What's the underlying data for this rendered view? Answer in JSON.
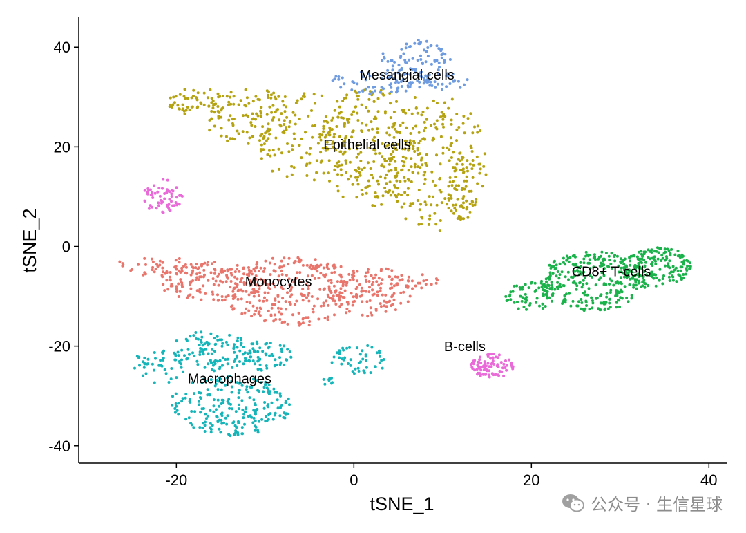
{
  "chart_data": {
    "type": "scatter",
    "title": "",
    "xlabel": "tSNE_1",
    "ylabel": "tSNE_2",
    "xlim": [
      -31,
      42
    ],
    "ylim": [
      -43.5,
      46
    ],
    "xticks": [
      -20,
      0,
      20,
      40
    ],
    "yticks": [
      -40,
      -20,
      0,
      20,
      40
    ],
    "grid": false,
    "legend": "none",
    "series": [
      {
        "name": "Epithelial cells",
        "color": "#B5A312",
        "label_at": [
          1.5,
          19.5
        ],
        "regions": [
          {
            "shape": "ellipse",
            "cx": -17,
            "cy": 29,
            "rx": 4,
            "ry": 3,
            "n": 60
          },
          {
            "shape": "ellipse",
            "cx": -12,
            "cy": 26,
            "rx": 5,
            "ry": 6,
            "n": 90
          },
          {
            "shape": "ellipse",
            "cx": -6,
            "cy": 22,
            "rx": 6,
            "ry": 9,
            "n": 130
          },
          {
            "shape": "ellipse",
            "cx": 2,
            "cy": 20,
            "rx": 6,
            "ry": 12,
            "n": 230
          },
          {
            "shape": "ellipse",
            "cx": 9,
            "cy": 17,
            "rx": 6,
            "ry": 14,
            "n": 220
          },
          {
            "shape": "ellipse",
            "cx": 12,
            "cy": 12,
            "rx": 2,
            "ry": 8,
            "n": 50
          }
        ]
      },
      {
        "name": "Mesangial cells",
        "color": "#6F9CE0",
        "label_at": [
          6,
          33.5
        ],
        "regions": [
          {
            "shape": "ellipse",
            "cx": 7,
            "cy": 38,
            "rx": 4,
            "ry": 3.5,
            "n": 70
          },
          {
            "shape": "ellipse",
            "cx": 3,
            "cy": 33,
            "rx": 6,
            "ry": 2.5,
            "n": 80
          },
          {
            "shape": "ellipse",
            "cx": 10,
            "cy": 33,
            "rx": 3,
            "ry": 2,
            "n": 30
          }
        ]
      },
      {
        "name": "Monocytes",
        "color": "#E8766D",
        "label_at": [
          -8.5,
          -8
        ],
        "regions": [
          {
            "shape": "ellipse",
            "cx": -22,
            "cy": -4,
            "rx": 5,
            "ry": 2,
            "n": 40
          },
          {
            "shape": "ellipse",
            "cx": -16,
            "cy": -7,
            "rx": 6,
            "ry": 4,
            "n": 150
          },
          {
            "shape": "ellipse",
            "cx": -7,
            "cy": -9,
            "rx": 8,
            "ry": 7,
            "n": 280
          },
          {
            "shape": "ellipse",
            "cx": 2,
            "cy": -9,
            "rx": 5,
            "ry": 5,
            "n": 130
          },
          {
            "shape": "ellipse",
            "cx": 7,
            "cy": -7,
            "rx": 3,
            "ry": 1.5,
            "n": 20
          }
        ]
      },
      {
        "name": "Macrophages",
        "color": "#15B5B9",
        "label_at": [
          -14,
          -27.5
        ],
        "regions": [
          {
            "shape": "ellipse",
            "cx": -22,
            "cy": -24,
            "rx": 3,
            "ry": 4,
            "n": 40
          },
          {
            "shape": "ellipse",
            "cx": -16,
            "cy": -21,
            "rx": 5,
            "ry": 4,
            "n": 110
          },
          {
            "shape": "ellipse",
            "cx": -14,
            "cy": -32,
            "rx": 7,
            "ry": 6,
            "n": 230
          },
          {
            "shape": "ellipse",
            "cx": -10,
            "cy": -22,
            "rx": 3,
            "ry": 3,
            "n": 60
          },
          {
            "shape": "ellipse",
            "cx": 0.5,
            "cy": -23,
            "rx": 3,
            "ry": 3.5,
            "n": 50
          },
          {
            "shape": "ellipse",
            "cx": -2.5,
            "cy": -27,
            "rx": 1,
            "ry": 1,
            "n": 8
          }
        ]
      },
      {
        "name": "CD8+ T-cells",
        "color": "#1BB24B",
        "label_at": [
          29,
          -6
        ],
        "regions": [
          {
            "shape": "ellipse",
            "cx": 20,
            "cy": -10,
            "rx": 3,
            "ry": 3,
            "n": 60
          },
          {
            "shape": "ellipse",
            "cx": 27,
            "cy": -7,
            "rx": 6,
            "ry": 6,
            "n": 300
          },
          {
            "shape": "ellipse",
            "cx": 34,
            "cy": -4,
            "rx": 4,
            "ry": 4,
            "n": 160
          }
        ]
      },
      {
        "name": "B-cells",
        "color": "#E96AD8",
        "label_at": [
          12.5,
          -21
        ],
        "regions": [
          {
            "shape": "ellipse",
            "cx": 15.5,
            "cy": -24,
            "rx": 2.5,
            "ry": 2.5,
            "n": 90
          },
          {
            "shape": "ellipse",
            "cx": -21.5,
            "cy": 10,
            "rx": 2.2,
            "ry": 3.5,
            "n": 60
          }
        ]
      }
    ]
  },
  "watermark": {
    "icon": "wechat-icon",
    "text": "公众号 · 生信星球",
    "color": "#8c8c8c"
  }
}
